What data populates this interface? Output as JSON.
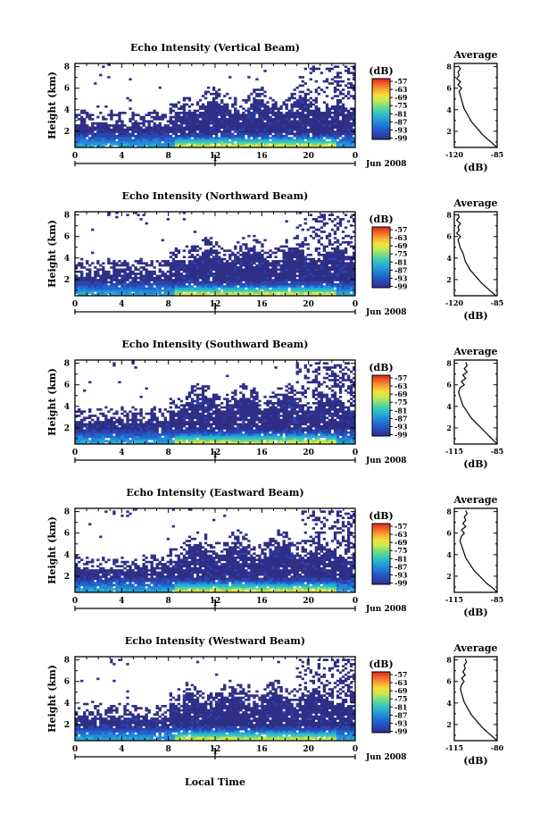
{
  "figure": {
    "xlabel": "Local Time",
    "date_label": "Jun 2008",
    "day_label": "1",
    "avg_title": "Average",
    "cbar_unit": "(dB)",
    "avg_xlabel": "(dB)"
  },
  "chart_data": [
    {
      "type": "heatmap",
      "title": "Echo Intensity (Vertical Beam)",
      "ylabel": "Height (km)",
      "x_ticks": [
        "0",
        "4",
        "8",
        "12",
        "16",
        "20",
        "0"
      ],
      "xlim": [
        0,
        24
      ],
      "y_ticks": [
        "2",
        "4",
        "6",
        "8"
      ],
      "ylim": [
        0.5,
        8.3
      ],
      "colorbar_ticks": [
        "-57",
        "-63",
        "-69",
        "-75",
        "-81",
        "-87",
        "-93",
        "-99"
      ],
      "colorbar_range": [
        -100,
        -55
      ],
      "profile": {
        "title": "Average",
        "x_ticks": [
          "-120",
          "-85"
        ],
        "xlim": [
          -120,
          -85
        ],
        "y_ticks": [
          "2",
          "4",
          "6",
          "8"
        ],
        "ylim": [
          0.5,
          8.3
        ],
        "x": [
          -85,
          -89,
          -93,
          -97,
          -100,
          -103,
          -106,
          -108,
          -110,
          -112,
          -113,
          -114,
          -115,
          -116,
          -114,
          -117,
          -115,
          -118,
          -116,
          -117,
          -115,
          -117
        ],
        "y": [
          0.5,
          0.9,
          1.3,
          1.7,
          2.1,
          2.5,
          2.9,
          3.3,
          3.7,
          4.1,
          4.5,
          4.9,
          5.3,
          5.7,
          6.0,
          6.3,
          6.6,
          6.9,
          7.2,
          7.5,
          7.8,
          8.1
        ]
      }
    },
    {
      "type": "heatmap",
      "title": "Echo Intensity (Northward Beam)",
      "ylabel": "Height (km)",
      "x_ticks": [
        "0",
        "4",
        "8",
        "12",
        "16",
        "20",
        "0"
      ],
      "xlim": [
        0,
        24
      ],
      "y_ticks": [
        "2",
        "4",
        "6",
        "8"
      ],
      "ylim": [
        0.5,
        8.3
      ],
      "colorbar_ticks": [
        "-57",
        "-63",
        "-69",
        "-75",
        "-81",
        "-87",
        "-93",
        "-99"
      ],
      "colorbar_range": [
        -100,
        -55
      ],
      "profile": {
        "title": "Average",
        "x_ticks": [
          "-120",
          "-85"
        ],
        "xlim": [
          -120,
          -85
        ],
        "y_ticks": [
          "2",
          "4",
          "6",
          "8"
        ],
        "ylim": [
          0.5,
          8.3
        ],
        "x": [
          -86,
          -90,
          -94,
          -98,
          -101,
          -104,
          -107,
          -109,
          -111,
          -112,
          -113,
          -115,
          -116,
          -117,
          -115,
          -118,
          -116,
          -117,
          -115,
          -118,
          -116,
          -117
        ],
        "y": [
          0.5,
          0.9,
          1.3,
          1.7,
          2.1,
          2.5,
          2.9,
          3.3,
          3.7,
          4.1,
          4.5,
          4.9,
          5.3,
          5.7,
          6.0,
          6.3,
          6.6,
          6.9,
          7.2,
          7.5,
          7.8,
          8.1
        ]
      }
    },
    {
      "type": "heatmap",
      "title": "Echo Intensity (Southward Beam)",
      "ylabel": "Height (km)",
      "x_ticks": [
        "0",
        "4",
        "8",
        "12",
        "16",
        "20",
        "0"
      ],
      "xlim": [
        0,
        24
      ],
      "y_ticks": [
        "2",
        "4",
        "6",
        "8"
      ],
      "ylim": [
        0.5,
        8.3
      ],
      "colorbar_ticks": [
        "-57",
        "-63",
        "-69",
        "-75",
        "-81",
        "-87",
        "-93",
        "-99"
      ],
      "colorbar_range": [
        -100,
        -55
      ],
      "profile": {
        "title": "Average",
        "x_ticks": [
          "-115",
          "-85"
        ],
        "xlim": [
          -115,
          -85
        ],
        "y_ticks": [
          "2",
          "4",
          "6",
          "8"
        ],
        "ylim": [
          0.5,
          8.3
        ],
        "x": [
          -85,
          -88,
          -91,
          -94,
          -97,
          -100,
          -103,
          -105,
          -107,
          -109,
          -110,
          -111,
          -112,
          -111,
          -108,
          -110,
          -107,
          -109,
          -106,
          -108,
          -106,
          -107
        ],
        "y": [
          0.5,
          0.9,
          1.3,
          1.7,
          2.1,
          2.5,
          2.9,
          3.3,
          3.7,
          4.1,
          4.5,
          4.9,
          5.3,
          5.7,
          6.0,
          6.3,
          6.6,
          6.9,
          7.2,
          7.5,
          7.8,
          8.1
        ]
      }
    },
    {
      "type": "heatmap",
      "title": "Echo Intensity (Eastward Beam)",
      "ylabel": "Height (km)",
      "x_ticks": [
        "0",
        "4",
        "8",
        "12",
        "16",
        "20",
        "0"
      ],
      "xlim": [
        0,
        24
      ],
      "y_ticks": [
        "2",
        "4",
        "6",
        "8"
      ],
      "ylim": [
        0.5,
        8.3
      ],
      "colorbar_ticks": [
        "-57",
        "-63",
        "-69",
        "-75",
        "-81",
        "-87",
        "-93",
        "-99"
      ],
      "colorbar_range": [
        -100,
        -55
      ],
      "profile": {
        "title": "Average",
        "x_ticks": [
          "-115",
          "-85"
        ],
        "xlim": [
          -115,
          -85
        ],
        "y_ticks": [
          "2",
          "4",
          "6",
          "8"
        ],
        "ylim": [
          0.5,
          8.3
        ],
        "x": [
          -85,
          -88,
          -92,
          -95,
          -98,
          -101,
          -103,
          -105,
          -107,
          -108,
          -109,
          -110,
          -111,
          -110,
          -108,
          -110,
          -107,
          -109,
          -107,
          -108,
          -106,
          -107
        ],
        "y": [
          0.5,
          0.9,
          1.3,
          1.7,
          2.1,
          2.5,
          2.9,
          3.3,
          3.7,
          4.1,
          4.5,
          4.9,
          5.3,
          5.7,
          6.0,
          6.3,
          6.6,
          6.9,
          7.2,
          7.5,
          7.8,
          8.1
        ]
      }
    },
    {
      "type": "heatmap",
      "title": "Echo Intensity (Westward Beam)",
      "ylabel": "Height (km)",
      "x_ticks": [
        "0",
        "4",
        "8",
        "12",
        "16",
        "20",
        "0"
      ],
      "xlim": [
        0,
        24
      ],
      "y_ticks": [
        "2",
        "4",
        "6",
        "8"
      ],
      "ylim": [
        0.5,
        8.3
      ],
      "colorbar_ticks": [
        "-57",
        "-63",
        "-69",
        "-75",
        "-81",
        "-87",
        "-93",
        "-99"
      ],
      "colorbar_range": [
        -100,
        -55
      ],
      "profile": {
        "title": "Average",
        "x_ticks": [
          "-115",
          "-80"
        ],
        "xlim": [
          -115,
          -80
        ],
        "y_ticks": [
          "2",
          "4",
          "6",
          "8"
        ],
        "ylim": [
          0.5,
          8.3
        ],
        "x": [
          -80,
          -84,
          -88,
          -92,
          -95,
          -98,
          -101,
          -103,
          -105,
          -107,
          -108,
          -109,
          -110,
          -109,
          -107,
          -109,
          -106,
          -108,
          -106,
          -107,
          -105,
          -106
        ],
        "y": [
          0.5,
          0.9,
          1.3,
          1.7,
          2.1,
          2.5,
          2.9,
          3.3,
          3.7,
          4.1,
          4.5,
          4.9,
          5.3,
          5.7,
          6.0,
          6.3,
          6.6,
          6.9,
          7.2,
          7.5,
          7.8,
          8.1
        ]
      }
    }
  ]
}
